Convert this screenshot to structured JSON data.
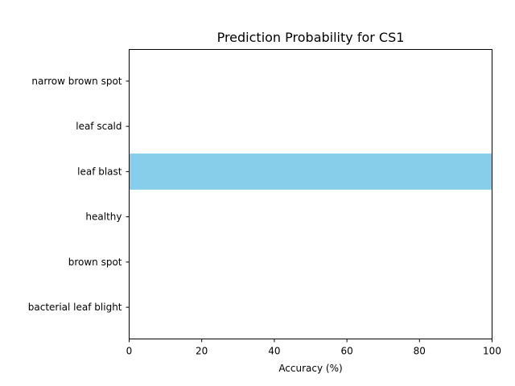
{
  "chart_data": {
    "type": "bar",
    "orientation": "horizontal",
    "title": "Prediction Probability for CS1",
    "xlabel": "Accuracy (%)",
    "ylabel": "",
    "xlim": [
      0,
      100
    ],
    "xticks": [
      0,
      20,
      40,
      60,
      80,
      100
    ],
    "categories": [
      "bacterial leaf blight",
      "brown spot",
      "healthy",
      "leaf blast",
      "leaf scald",
      "narrow brown spot"
    ],
    "values": [
      0,
      0,
      0,
      100,
      0,
      0
    ],
    "bar_color": "#87CEEB",
    "grid": false,
    "legend": "none"
  }
}
